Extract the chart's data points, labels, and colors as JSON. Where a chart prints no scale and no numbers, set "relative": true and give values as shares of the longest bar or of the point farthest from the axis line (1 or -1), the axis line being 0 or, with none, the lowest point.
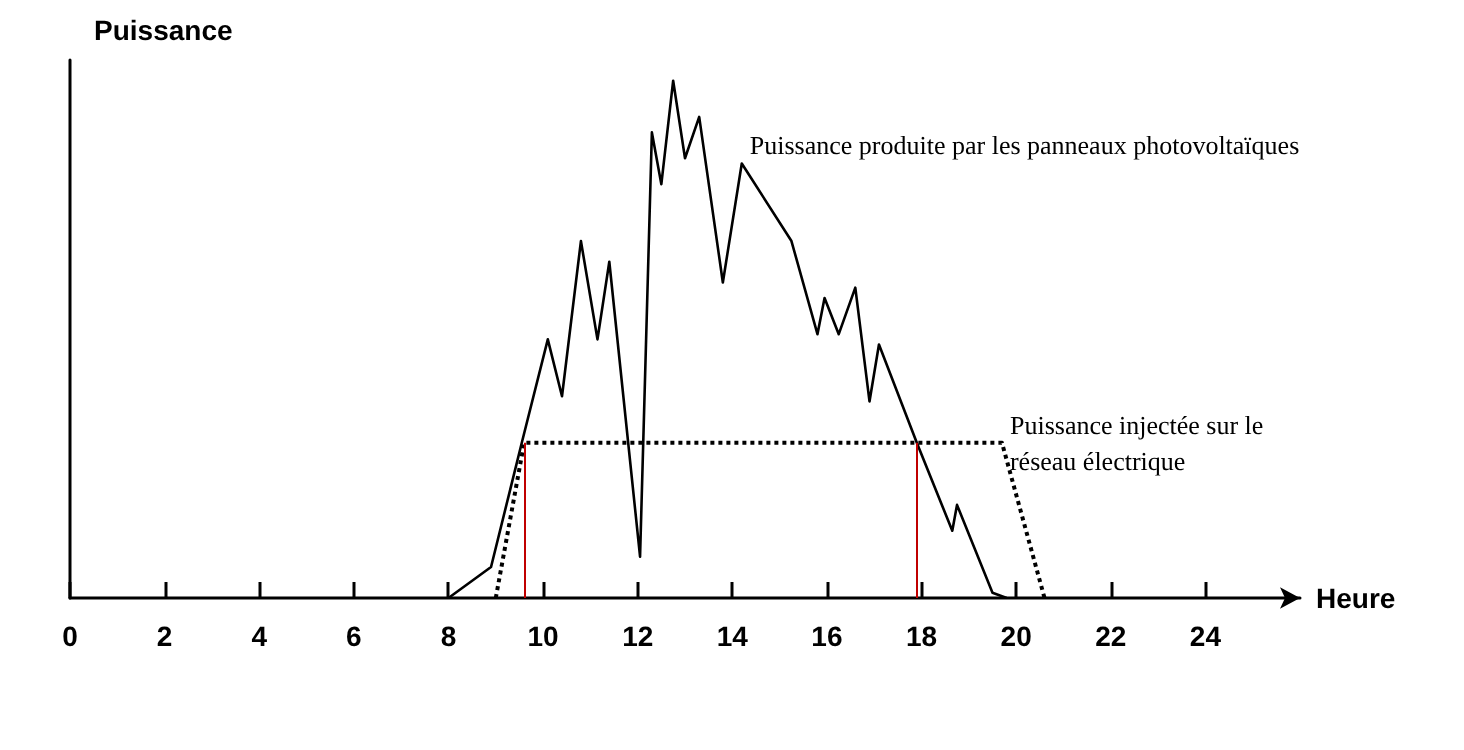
{
  "chart_data": {
    "type": "line",
    "relative": true,
    "xlabel": "Heure",
    "ylabel": "Puissance",
    "xlim": [
      0,
      26
    ],
    "xticks": [
      0,
      2,
      4,
      6,
      8,
      10,
      12,
      14,
      16,
      18,
      20,
      22,
      24
    ],
    "grid": false,
    "legend": false,
    "marker": "none",
    "series": [
      {
        "name": "Puissance produite par les panneaux photovoltaïques",
        "color": "#000000",
        "line_style": "solid",
        "x": [
          8.0,
          8.9,
          9.55,
          10.1,
          10.4,
          10.8,
          11.15,
          11.4,
          12.05,
          12.3,
          12.5,
          12.75,
          13.0,
          13.3,
          13.8,
          14.2,
          15.25,
          15.8,
          15.95,
          16.25,
          16.6,
          16.9,
          17.1,
          17.9,
          18.65,
          18.75,
          19.5,
          19.8
        ],
        "values": [
          0,
          0.06,
          0.3,
          0.5,
          0.39,
          0.69,
          0.5,
          0.65,
          0.08,
          0.9,
          0.8,
          1.0,
          0.85,
          0.93,
          0.61,
          0.84,
          0.69,
          0.51,
          0.58,
          0.51,
          0.6,
          0.38,
          0.49,
          0.3,
          0.13,
          0.18,
          0.01,
          0
        ]
      },
      {
        "name": "Puissance injectée sur le réseau électrique",
        "color": "#000000",
        "line_style": "dotted",
        "x": [
          9.0,
          9.6,
          19.7,
          20.6
        ],
        "values": [
          0,
          0.3,
          0.3,
          0
        ]
      }
    ],
    "ref_lines": [
      {
        "axis": "x",
        "value": 9.6,
        "color": "#c00000"
      },
      {
        "axis": "x",
        "value": 17.9,
        "color": "#c00000"
      }
    ]
  }
}
